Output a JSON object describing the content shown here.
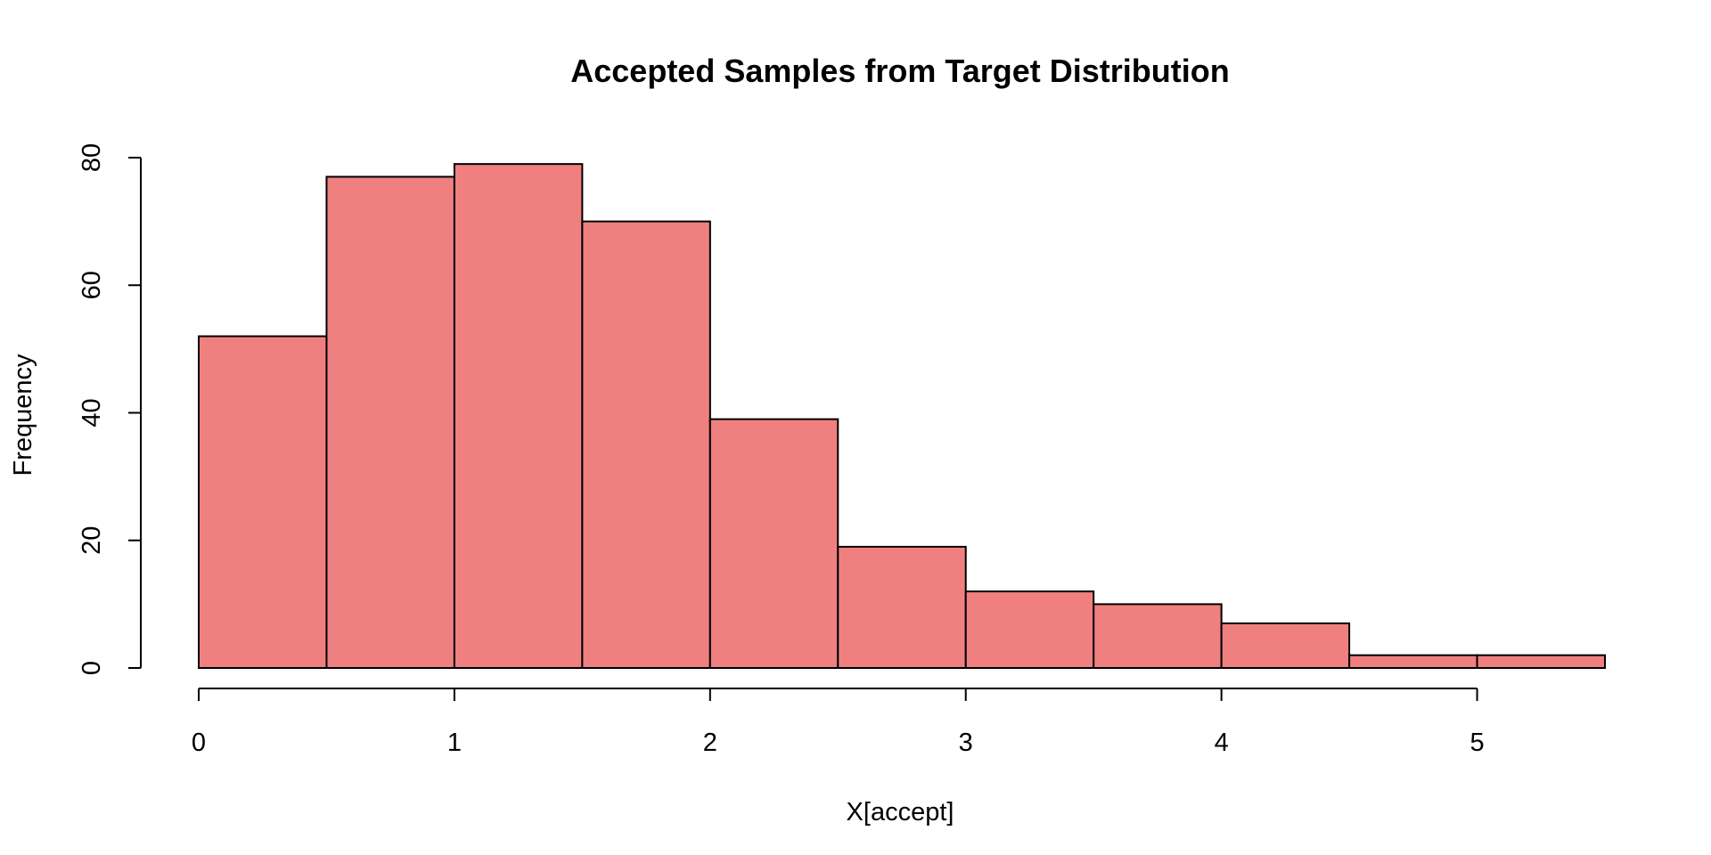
{
  "chart_data": {
    "type": "bar",
    "title": "Accepted Samples from Target Distribution",
    "xlabel": "X[accept]",
    "ylabel": "Frequency",
    "bin_edges": [
      0,
      0.5,
      1,
      1.5,
      2,
      2.5,
      3,
      3.5,
      4,
      4.5,
      5,
      5.5
    ],
    "values": [
      52,
      77,
      79,
      70,
      39,
      19,
      12,
      10,
      7,
      2,
      2
    ],
    "xlim": [
      0,
      5.5
    ],
    "ylim": [
      0,
      80
    ],
    "x_ticks": [
      0,
      1,
      2,
      3,
      4,
      5
    ],
    "y_ticks": [
      0,
      20,
      40,
      60,
      80
    ],
    "bar_color": "#F08080",
    "edge_color": "#000000",
    "grid": false,
    "legend": "none"
  }
}
